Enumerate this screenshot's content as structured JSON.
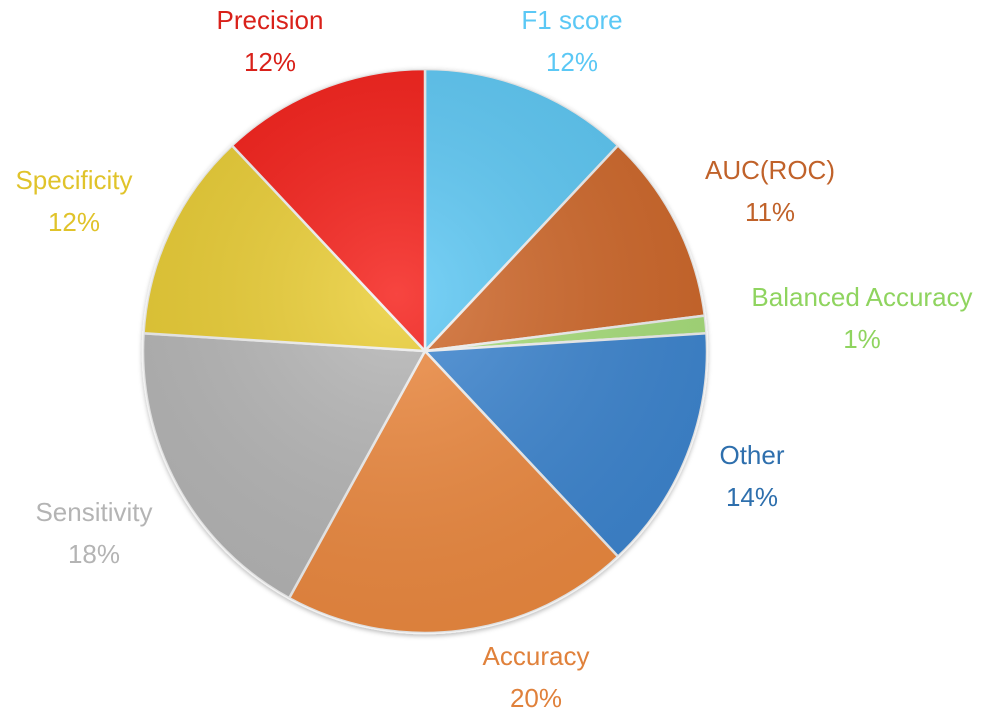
{
  "chart_data": {
    "type": "pie",
    "title": "",
    "start_angle_deg": 0,
    "direction": "clockwise",
    "slices": [
      {
        "label": "F1 score",
        "percent_label": "12%",
        "value": 12,
        "color": "#5bc8f5",
        "label_color": "#5bc8f5"
      },
      {
        "label": "AUC(ROC)",
        "percent_label": "11%",
        "value": 11,
        "color": "#d0682a",
        "label_color": "#c0622a"
      },
      {
        "label": "Balanced Accuracy",
        "percent_label": "1%",
        "value": 1,
        "color": "#a9e07b",
        "label_color": "#8fd45f"
      },
      {
        "label": "Other",
        "percent_label": "14%",
        "value": 14,
        "color": "#3d86d1",
        "label_color": "#2e6fad"
      },
      {
        "label": "Accuracy",
        "percent_label": "20%",
        "value": 20,
        "color": "#ee8a40",
        "label_color": "#e0813b"
      },
      {
        "label": "Sensitivity",
        "percent_label": "18%",
        "value": 18,
        "color": "#b6b6b6",
        "label_color": "#b4b4b4"
      },
      {
        "label": "Specificity",
        "percent_label": "12%",
        "value": 12,
        "color": "#eacd31",
        "label_color": "#e0c32a"
      },
      {
        "label": "Precision",
        "percent_label": "12%",
        "value": 12,
        "color": "#f51d16",
        "label_color": "#d9211a"
      }
    ]
  }
}
